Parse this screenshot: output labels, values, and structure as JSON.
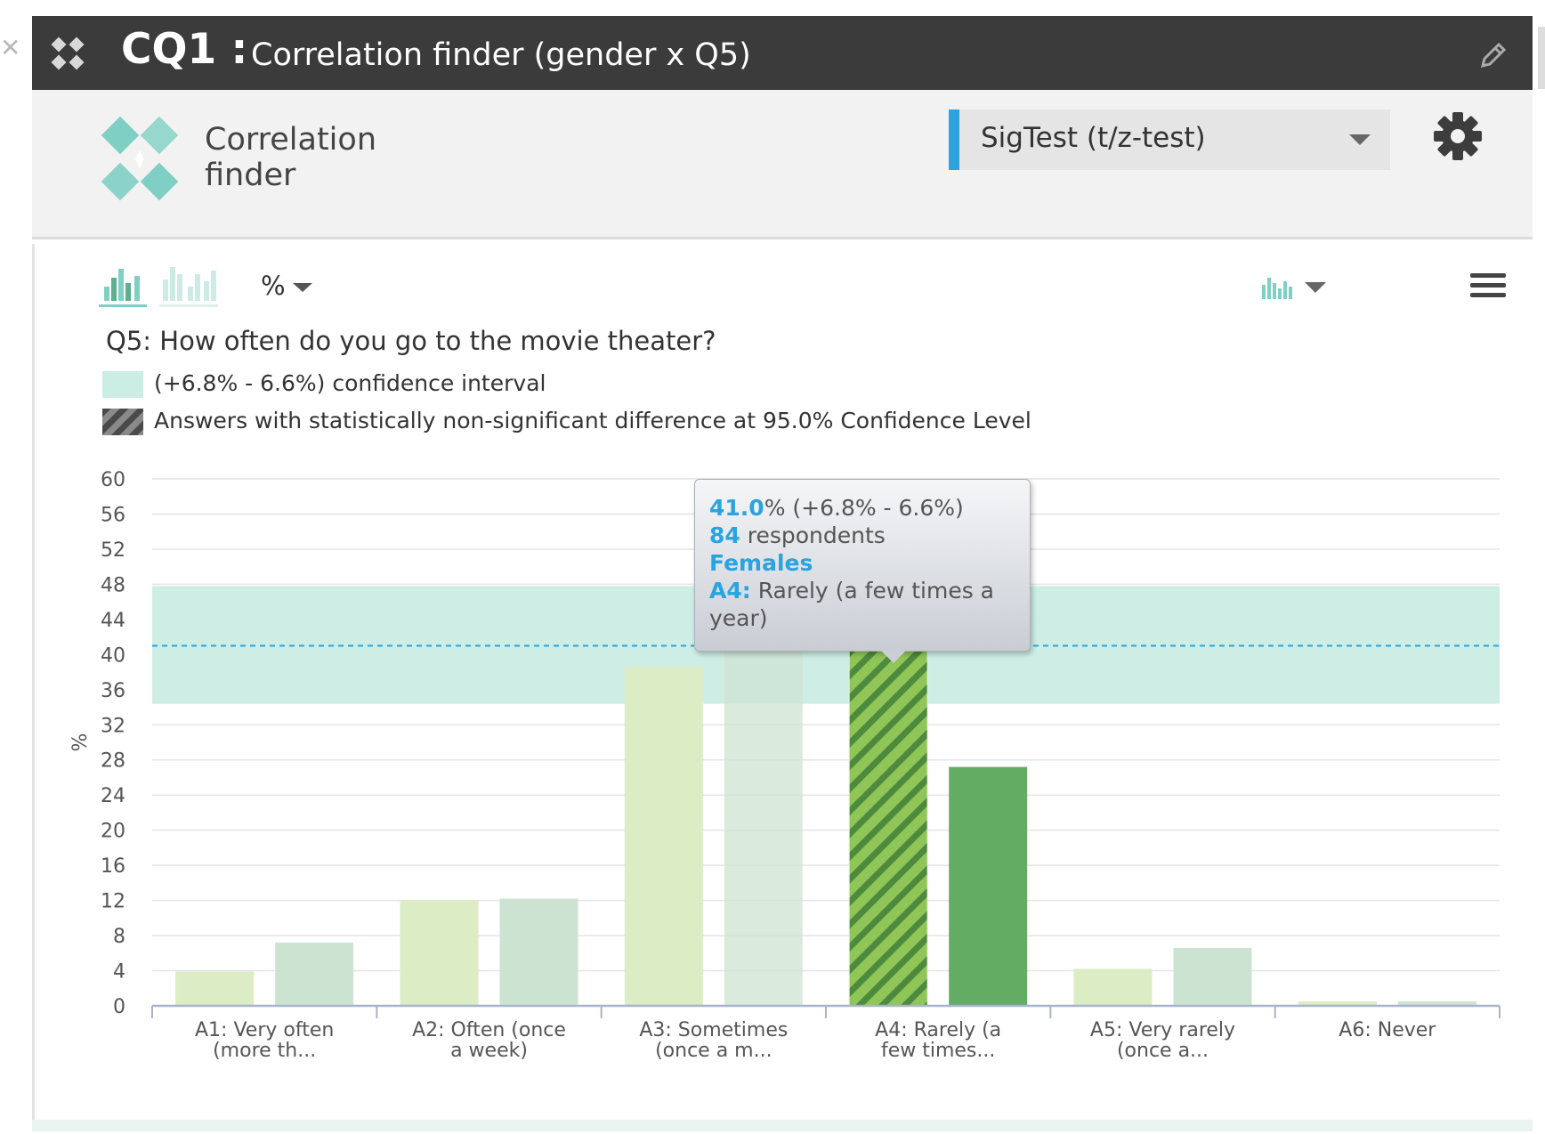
{
  "window": {
    "id": "CQ1 :",
    "title": "Correlation finder (gender x Q5)"
  },
  "header": {
    "logo_text": "Correlation finder",
    "method_dropdown": "SigTest (t/z-test)"
  },
  "toolbar": {
    "unit_select": "%"
  },
  "question": "Q5: How often do you go to the movie theater?",
  "legend": {
    "confidence_interval": "(+6.8% - 6.6%) confidence interval",
    "non_significant": "Answers with statistically non-significant difference at 95.0% Confidence Level"
  },
  "tooltip": {
    "percent_value": "41.0",
    "percent_suffix": "% (+6.8% - 6.6%)",
    "respondents_value": "84",
    "respondents_suffix": " respondents",
    "group": "Females",
    "answer_code": "A4:",
    "answer_text": " Rarely (a few times a year)"
  },
  "colors": {
    "accent": "#2aa3de",
    "ci_band": "#cbede4",
    "bar_light": "#dcecc4",
    "bar_mid": "#cde3d2",
    "bar_green": "#62ac64",
    "hatch_a": "#8fc657",
    "hatch_b": "#4e8a3e"
  },
  "chart_data": {
    "type": "bar",
    "ylabel": "%",
    "ylim": [
      0,
      60
    ],
    "yticks": [
      0,
      4,
      8,
      12,
      16,
      20,
      24,
      28,
      32,
      36,
      40,
      44,
      48,
      52,
      56,
      60
    ],
    "categories": [
      [
        "A1: Very often",
        "(more th..."
      ],
      [
        "A2: Often (once",
        "a week)"
      ],
      [
        "A3: Sometimes",
        "(once a m..."
      ],
      [
        "A4: Rarely (a",
        "few times..."
      ],
      [
        "A5: Very rarely",
        "(once a..."
      ],
      [
        "A6: Never",
        ""
      ]
    ],
    "series": [
      {
        "values": [
          3.9,
          12.0,
          38.6,
          41.0,
          4.2,
          0.5
        ]
      },
      {
        "values": [
          7.2,
          12.2,
          41.0,
          27.2,
          6.6,
          0.5
        ]
      }
    ],
    "reference_line": 41.0,
    "ci_band": [
      34.4,
      47.8
    ],
    "highlight": {
      "series": 0,
      "category": 3
    },
    "grid": true
  }
}
